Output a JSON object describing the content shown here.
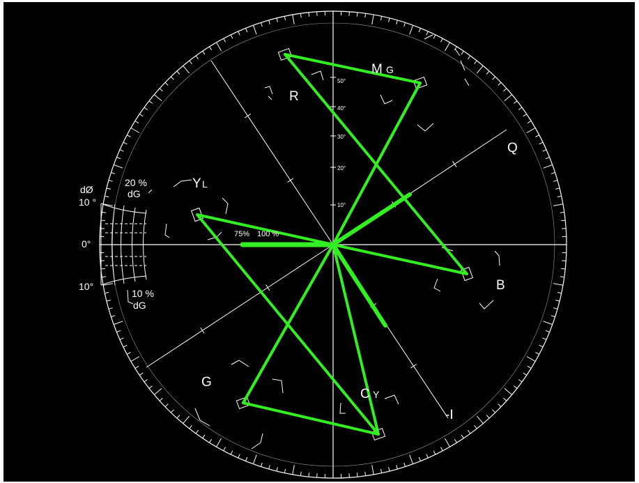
{
  "colors": {
    "background": "#000000",
    "graticule": "#ffffff",
    "trace": "#33ee22"
  },
  "vectors": {
    "red": "R",
    "magenta_main": "M",
    "magenta_small": "G",
    "blue": "B",
    "cyan_main": "C",
    "cyan_small": "Y",
    "green": "G",
    "yellow_main": "Y",
    "yellow_small": "L"
  },
  "axes": {
    "q": "Q",
    "i": "-I"
  },
  "gain_markers": {
    "pct75": "75%",
    "pct100": "100 %"
  },
  "phase_scale": {
    "symbol": "dØ",
    "upper": "10 °",
    "zero": "0°",
    "lower": "10°"
  },
  "gain_scale": {
    "upper_pct": "20 %",
    "upper_unit": "dG",
    "lower_pct": "10 %",
    "lower_unit": "dG"
  },
  "ruler_ticks": [
    "50°",
    "40°",
    "30°",
    "20°",
    "10°"
  ]
}
